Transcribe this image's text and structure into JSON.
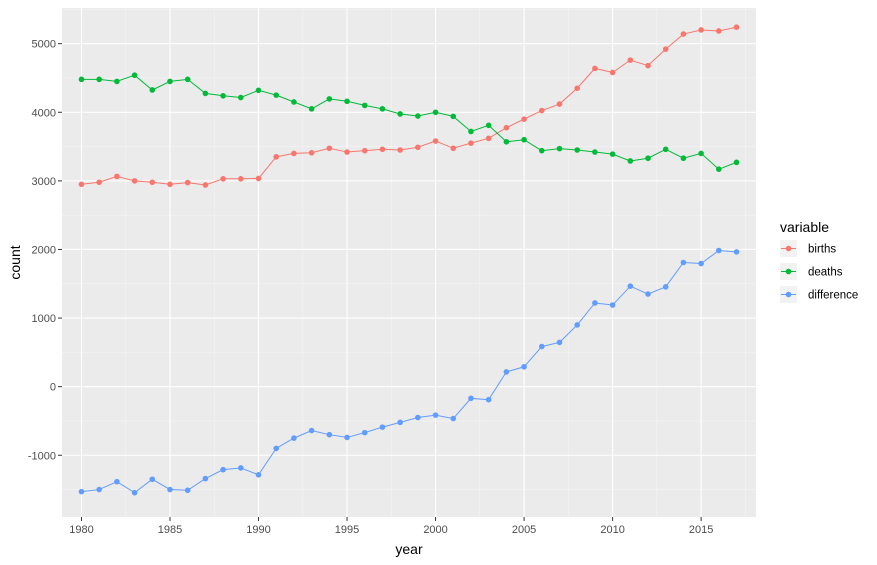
{
  "chart_data": {
    "type": "line",
    "title": "",
    "xlabel": "year",
    "ylabel": "count",
    "xlim": [
      1978.9,
      2018.1
    ],
    "ylim": [
      -1900,
      5520
    ],
    "x_ticks": [
      1980,
      1985,
      1990,
      1995,
      2000,
      2005,
      2010,
      2015
    ],
    "y_ticks": [
      -1000,
      0,
      1000,
      2000,
      3000,
      4000,
      5000
    ],
    "grid": true,
    "legend": {
      "title": "variable",
      "position": "right"
    },
    "x": [
      1980,
      1981,
      1982,
      1983,
      1984,
      1985,
      1986,
      1987,
      1988,
      1989,
      1990,
      1991,
      1992,
      1993,
      1994,
      1995,
      1996,
      1997,
      1998,
      1999,
      2000,
      2001,
      2002,
      2003,
      2004,
      2005,
      2006,
      2007,
      2008,
      2009,
      2010,
      2011,
      2012,
      2013,
      2014,
      2015,
      2016,
      2017
    ],
    "series": [
      {
        "name": "births",
        "color": "#F8766D",
        "values": [
          2950,
          2980,
          3065,
          3000,
          2980,
          2950,
          2975,
          2940,
          3030,
          3030,
          3035,
          3350,
          3400,
          3410,
          3475,
          3420,
          3440,
          3460,
          3450,
          3490,
          3580,
          3475,
          3550,
          3620,
          3775,
          3900,
          4025,
          4120,
          4350,
          4640,
          4580,
          4760,
          4680,
          4920,
          5140,
          5200,
          5185,
          5240
        ]
      },
      {
        "name": "deaths",
        "color": "#00BA38",
        "values": [
          4480,
          4480,
          4450,
          4540,
          4325,
          4450,
          4480,
          4275,
          4240,
          4215,
          4320,
          4250,
          4150,
          4050,
          4195,
          4160,
          4100,
          4050,
          3975,
          3945,
          4000,
          3940,
          3720,
          3810,
          3570,
          3600,
          3440,
          3470,
          3450,
          3420,
          3390,
          3290,
          3330,
          3460,
          3330,
          3400,
          3170,
          3270
        ]
      },
      {
        "name": "difference",
        "color": "#619CFF",
        "values": [
          -1530,
          -1500,
          -1385,
          -1545,
          -1350,
          -1500,
          -1510,
          -1340,
          -1210,
          -1185,
          -1285,
          -900,
          -750,
          -640,
          -700,
          -740,
          -670,
          -590,
          -520,
          -450,
          -415,
          -465,
          -170,
          -190,
          215,
          290,
          585,
          645,
          900,
          1220,
          1190,
          1465,
          1350,
          1455,
          1810,
          1795,
          1985,
          1965
        ]
      }
    ]
  }
}
